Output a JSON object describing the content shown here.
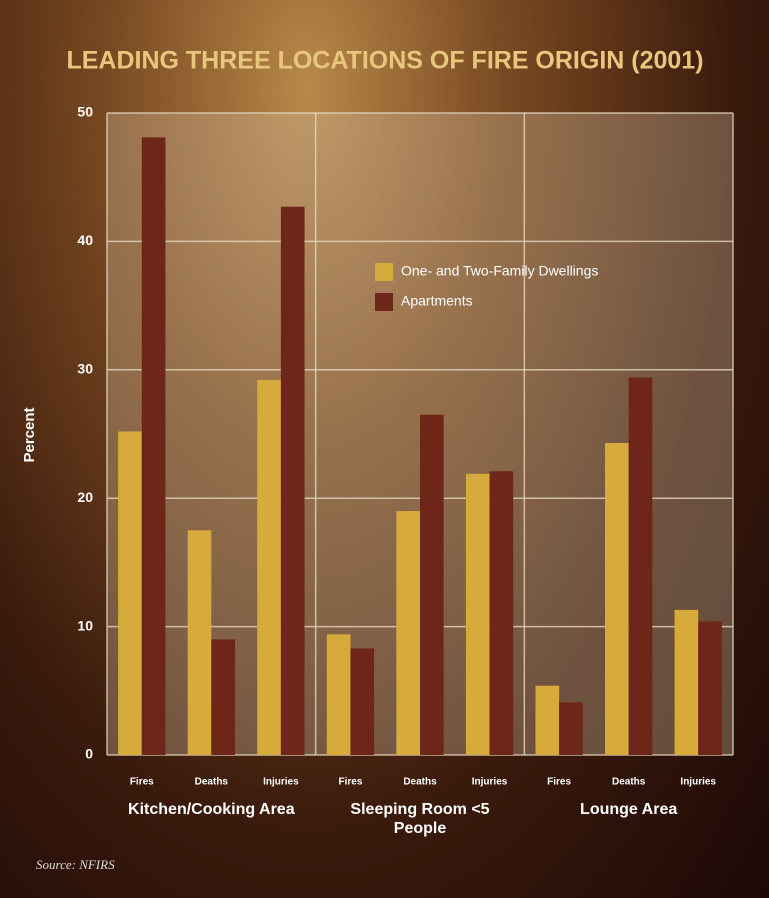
{
  "chart_data": {
    "type": "bar",
    "title": "LEADING THREE LOCATIONS OF FIRE ORIGIN (2001)",
    "y_label": "Percent",
    "source": "Source: NFIRS",
    "categories": [
      "Fires",
      "Deaths",
      "Injuries",
      "Fires",
      "Deaths",
      "Injuries",
      "Fires",
      "Deaths",
      "Injuries"
    ],
    "groups": [
      "Kitchen/Cooking Area",
      "Sleeping Room <5 People",
      "Lounge Area"
    ],
    "series": [
      {
        "name": "One- and Two-Family Dwellings",
        "color": "#d6ab3c",
        "values": [
          25.2,
          17.5,
          29.2,
          9.4,
          19.0,
          21.9,
          5.4,
          24.3,
          11.3
        ]
      },
      {
        "name": "Apartments",
        "color": "#6e2618",
        "values": [
          48.1,
          9.0,
          42.7,
          8.3,
          26.5,
          22.1,
          4.1,
          29.4,
          10.4
        ]
      }
    ],
    "ylim": [
      0,
      50
    ],
    "yticks": [
      0,
      10,
      20,
      30,
      40,
      50
    ],
    "grid": true
  }
}
